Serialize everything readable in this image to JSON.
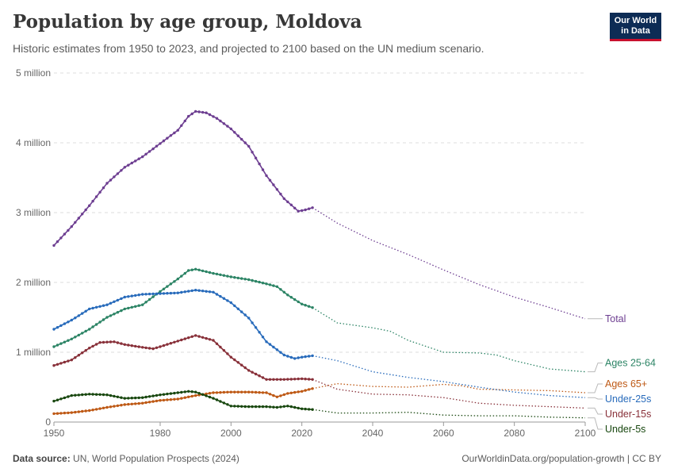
{
  "header": {
    "title": "Population by age group, Moldova",
    "subtitle": "Historic estimates from 1950 to 2023, and projected to 2100 based on the UN medium scenario.",
    "logo_line1": "Our World",
    "logo_line2": "in Data"
  },
  "footer": {
    "source_label": "Data source:",
    "source_text": "UN, World Population Prospects (2024)",
    "url": "OurWorldinData.org/population-growth | CC BY"
  },
  "chart_data": {
    "type": "line",
    "xlim": [
      1950,
      2100
    ],
    "ylim": [
      0,
      5000000
    ],
    "x_ticks": [
      1950,
      1980,
      2000,
      2020,
      2040,
      2060,
      2080,
      2100
    ],
    "y_ticks": [
      {
        "value": 0,
        "label": "0"
      },
      {
        "value": 1000000,
        "label": "1 million"
      },
      {
        "value": 2000000,
        "label": "2 million"
      },
      {
        "value": 3000000,
        "label": "3 million"
      },
      {
        "value": 4000000,
        "label": "4 million"
      },
      {
        "value": 5000000,
        "label": "5 million"
      }
    ],
    "grid": true,
    "projection_start": 2023,
    "legend_placement": "right, at line ends",
    "series": [
      {
        "name": "Total",
        "color": "#6d3e91",
        "points": [
          [
            1950,
            2530000
          ],
          [
            1955,
            2800000
          ],
          [
            1960,
            3100000
          ],
          [
            1965,
            3420000
          ],
          [
            1970,
            3650000
          ],
          [
            1975,
            3800000
          ],
          [
            1980,
            3990000
          ],
          [
            1985,
            4180000
          ],
          [
            1988,
            4380000
          ],
          [
            1990,
            4450000
          ],
          [
            1993,
            4430000
          ],
          [
            1996,
            4350000
          ],
          [
            2000,
            4200000
          ],
          [
            2005,
            3950000
          ],
          [
            2010,
            3530000
          ],
          [
            2015,
            3200000
          ],
          [
            2019,
            3020000
          ],
          [
            2021,
            3040000
          ],
          [
            2023,
            3070000
          ],
          [
            2030,
            2850000
          ],
          [
            2040,
            2600000
          ],
          [
            2050,
            2400000
          ],
          [
            2060,
            2180000
          ],
          [
            2070,
            1970000
          ],
          [
            2080,
            1790000
          ],
          [
            2090,
            1640000
          ],
          [
            2100,
            1480000
          ]
        ]
      },
      {
        "name": "Ages 25-64",
        "color": "#2c8465",
        "points": [
          [
            1950,
            1080000
          ],
          [
            1955,
            1190000
          ],
          [
            1960,
            1330000
          ],
          [
            1965,
            1500000
          ],
          [
            1970,
            1620000
          ],
          [
            1975,
            1680000
          ],
          [
            1980,
            1870000
          ],
          [
            1985,
            2050000
          ],
          [
            1988,
            2170000
          ],
          [
            1990,
            2190000
          ],
          [
            1995,
            2130000
          ],
          [
            2000,
            2080000
          ],
          [
            2005,
            2040000
          ],
          [
            2010,
            1980000
          ],
          [
            2013,
            1940000
          ],
          [
            2016,
            1820000
          ],
          [
            2020,
            1690000
          ],
          [
            2023,
            1640000
          ],
          [
            2030,
            1420000
          ],
          [
            2040,
            1350000
          ],
          [
            2045,
            1300000
          ],
          [
            2050,
            1170000
          ],
          [
            2060,
            1000000
          ],
          [
            2070,
            990000
          ],
          [
            2075,
            960000
          ],
          [
            2080,
            880000
          ],
          [
            2090,
            760000
          ],
          [
            2100,
            720000
          ]
        ]
      },
      {
        "name": "Ages 65+",
        "color": "#be5915",
        "points": [
          [
            1950,
            120000
          ],
          [
            1955,
            135000
          ],
          [
            1960,
            165000
          ],
          [
            1965,
            210000
          ],
          [
            1970,
            250000
          ],
          [
            1975,
            270000
          ],
          [
            1980,
            310000
          ],
          [
            1985,
            330000
          ],
          [
            1990,
            380000
          ],
          [
            1995,
            420000
          ],
          [
            2000,
            430000
          ],
          [
            2005,
            430000
          ],
          [
            2010,
            420000
          ],
          [
            2013,
            360000
          ],
          [
            2016,
            410000
          ],
          [
            2020,
            440000
          ],
          [
            2023,
            480000
          ],
          [
            2030,
            550000
          ],
          [
            2040,
            510000
          ],
          [
            2050,
            500000
          ],
          [
            2060,
            540000
          ],
          [
            2065,
            520000
          ],
          [
            2070,
            470000
          ],
          [
            2080,
            460000
          ],
          [
            2090,
            450000
          ],
          [
            2100,
            420000
          ]
        ]
      },
      {
        "name": "Under-25s",
        "color": "#286bbb",
        "points": [
          [
            1950,
            1330000
          ],
          [
            1955,
            1460000
          ],
          [
            1960,
            1620000
          ],
          [
            1965,
            1680000
          ],
          [
            1970,
            1790000
          ],
          [
            1975,
            1830000
          ],
          [
            1980,
            1840000
          ],
          [
            1985,
            1850000
          ],
          [
            1990,
            1890000
          ],
          [
            1995,
            1860000
          ],
          [
            2000,
            1710000
          ],
          [
            2005,
            1490000
          ],
          [
            2010,
            1150000
          ],
          [
            2015,
            960000
          ],
          [
            2018,
            910000
          ],
          [
            2020,
            930000
          ],
          [
            2023,
            950000
          ],
          [
            2030,
            880000
          ],
          [
            2040,
            720000
          ],
          [
            2050,
            640000
          ],
          [
            2060,
            580000
          ],
          [
            2070,
            500000
          ],
          [
            2080,
            430000
          ],
          [
            2090,
            380000
          ],
          [
            2100,
            350000
          ]
        ]
      },
      {
        "name": "Under-15s",
        "color": "#883039",
        "points": [
          [
            1950,
            810000
          ],
          [
            1955,
            890000
          ],
          [
            1960,
            1060000
          ],
          [
            1963,
            1140000
          ],
          [
            1967,
            1150000
          ],
          [
            1970,
            1110000
          ],
          [
            1975,
            1070000
          ],
          [
            1978,
            1050000
          ],
          [
            1980,
            1080000
          ],
          [
            1985,
            1160000
          ],
          [
            1990,
            1240000
          ],
          [
            1995,
            1170000
          ],
          [
            2000,
            930000
          ],
          [
            2005,
            740000
          ],
          [
            2010,
            610000
          ],
          [
            2015,
            610000
          ],
          [
            2020,
            620000
          ],
          [
            2023,
            610000
          ],
          [
            2030,
            470000
          ],
          [
            2040,
            400000
          ],
          [
            2050,
            390000
          ],
          [
            2060,
            350000
          ],
          [
            2070,
            270000
          ],
          [
            2080,
            240000
          ],
          [
            2090,
            220000
          ],
          [
            2100,
            200000
          ]
        ]
      },
      {
        "name": "Under-5s",
        "color": "#18470f",
        "points": [
          [
            1950,
            300000
          ],
          [
            1955,
            380000
          ],
          [
            1960,
            400000
          ],
          [
            1965,
            390000
          ],
          [
            1970,
            340000
          ],
          [
            1975,
            350000
          ],
          [
            1980,
            390000
          ],
          [
            1985,
            420000
          ],
          [
            1988,
            440000
          ],
          [
            1990,
            430000
          ],
          [
            1995,
            340000
          ],
          [
            2000,
            230000
          ],
          [
            2005,
            220000
          ],
          [
            2010,
            220000
          ],
          [
            2013,
            210000
          ],
          [
            2016,
            230000
          ],
          [
            2020,
            190000
          ],
          [
            2023,
            180000
          ],
          [
            2030,
            130000
          ],
          [
            2040,
            130000
          ],
          [
            2050,
            140000
          ],
          [
            2060,
            100000
          ],
          [
            2070,
            90000
          ],
          [
            2080,
            90000
          ],
          [
            2090,
            70000
          ],
          [
            2100,
            60000
          ]
        ]
      }
    ],
    "label_order": [
      "Total",
      "Ages 25-64",
      "Ages 65+",
      "Under-25s",
      "Under-15s",
      "Under-5s"
    ]
  }
}
